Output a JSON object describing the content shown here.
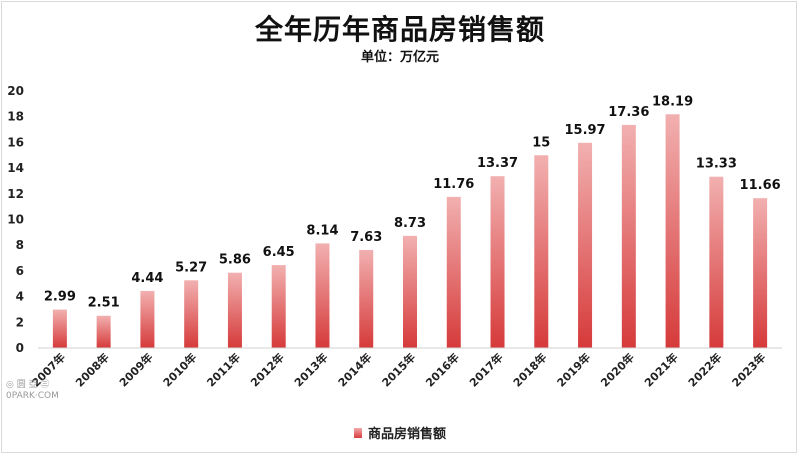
{
  "chart_data": {
    "type": "bar",
    "title": "全年历年商品房销售额",
    "subtitle": "单位：万亿元",
    "categories": [
      "2007年",
      "2008年",
      "2009年",
      "2010年",
      "2011年",
      "2012年",
      "2013年",
      "2014年",
      "2015年",
      "2016年",
      "2017年",
      "2018年",
      "2019年",
      "2020年",
      "2021年",
      "2022年",
      "2023年"
    ],
    "series": [
      {
        "name": "商品房销售额",
        "values": [
          2.99,
          2.51,
          4.44,
          5.27,
          5.86,
          6.45,
          8.14,
          7.63,
          8.73,
          11.76,
          13.37,
          15,
          15.97,
          17.36,
          18.19,
          13.33,
          11.66
        ],
        "data_labels": [
          "2.99",
          "2.51",
          "4.44",
          "5.27",
          "5.86",
          "6.45",
          "8.14",
          "7.63",
          "8.73",
          "11.76",
          "13.37",
          "15",
          "15.97",
          "17.36",
          "18.19",
          "13.33",
          "11.66"
        ]
      }
    ],
    "ylim": [
      0,
      20
    ],
    "yticks": [
      "0",
      "2",
      "4",
      "6",
      "8",
      "10",
      "12",
      "14",
      "16",
      "18",
      "20"
    ],
    "grid": false,
    "legend_position": "bottom",
    "colors": {
      "bar_top": "#f2b0b0",
      "bar_bottom": "#d63a3a"
    }
  },
  "watermark": {
    "line1": "◎ 圆 亞 ㊂",
    "line2": "0PARK·COM"
  }
}
